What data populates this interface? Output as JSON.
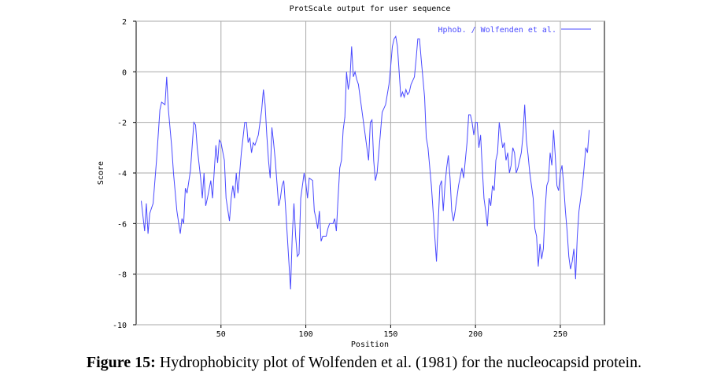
{
  "chart_data": {
    "type": "line",
    "title": "ProtScale output for user sequence",
    "xlabel": "Position",
    "ylabel": "Score",
    "xlim": [
      0,
      276
    ],
    "ylim": [
      -10,
      2
    ],
    "xticks": [
      50,
      100,
      150,
      200,
      250
    ],
    "yticks": [
      2,
      0,
      -2,
      -4,
      -6,
      -8,
      -10
    ],
    "grid": true,
    "legend": "upper right",
    "x": [
      3,
      5,
      6,
      7,
      8,
      10,
      12,
      14,
      15,
      17,
      18,
      19,
      21,
      22,
      24,
      26,
      27,
      28,
      29,
      30,
      32,
      34,
      35,
      36,
      38,
      39,
      40,
      41,
      42,
      44,
      45,
      47,
      48,
      49,
      50,
      52,
      53,
      55,
      56,
      57,
      58,
      59,
      60,
      62,
      64,
      65,
      66,
      67,
      68,
      69,
      70,
      72,
      73,
      74,
      75,
      76,
      77,
      78,
      79,
      80,
      81,
      82,
      84,
      85,
      86,
      87,
      88,
      90,
      91,
      92,
      93,
      94,
      95,
      96,
      97,
      98,
      99,
      100,
      101,
      102,
      104,
      105,
      106,
      107,
      108,
      109,
      110,
      112,
      113,
      114,
      116,
      117,
      118,
      119,
      120,
      121,
      122,
      123,
      124,
      125,
      126,
      127,
      128,
      129,
      130,
      131,
      132,
      134,
      136,
      137,
      138,
      139,
      140,
      141,
      142,
      143,
      145,
      147,
      149,
      150,
      151,
      152,
      153,
      154,
      155,
      156,
      157,
      158,
      159,
      160,
      161,
      162,
      164,
      165,
      166,
      167,
      168,
      170,
      171,
      172,
      174,
      176,
      177,
      178,
      179,
      180,
      181,
      182,
      183,
      184,
      185,
      186,
      187,
      188,
      190,
      192,
      193,
      194,
      195,
      196,
      197,
      198,
      199,
      200,
      201,
      202,
      203,
      204,
      205,
      206,
      207,
      208,
      209,
      210,
      211,
      212,
      213,
      214,
      215,
      216,
      217,
      218,
      219,
      220,
      221,
      222,
      223,
      224,
      225,
      227,
      228,
      229,
      230,
      231,
      232,
      234,
      235,
      236,
      237,
      238,
      239,
      240,
      241,
      242,
      243,
      244,
      245,
      246,
      247,
      248,
      249,
      250,
      251,
      252,
      253,
      254,
      255,
      256,
      257,
      258,
      259,
      260,
      261,
      262,
      263,
      264,
      265,
      266,
      267
    ],
    "series": [
      {
        "name": "Hphob. / Wolfenden et al.",
        "color": "#4a4aff",
        "values": [
          -5.1,
          -6.3,
          -5.2,
          -6.4,
          -5.6,
          -5.2,
          -3.5,
          -1.5,
          -1.2,
          -1.3,
          -0.2,
          -1.5,
          -3.0,
          -4.0,
          -5.5,
          -6.4,
          -5.8,
          -6.0,
          -4.6,
          -4.8,
          -3.9,
          -2.0,
          -2.1,
          -3.0,
          -4.2,
          -5.0,
          -4.0,
          -5.3,
          -5.0,
          -4.3,
          -5.0,
          -2.9,
          -3.6,
          -2.7,
          -2.8,
          -3.5,
          -5.0,
          -5.9,
          -5.0,
          -4.5,
          -5.0,
          -4.0,
          -4.8,
          -3.2,
          -2.0,
          -2.0,
          -2.8,
          -2.6,
          -3.2,
          -2.8,
          -2.9,
          -2.5,
          -2.0,
          -1.5,
          -0.7,
          -1.3,
          -2.5,
          -3.5,
          -4.2,
          -2.2,
          -2.8,
          -3.5,
          -5.3,
          -5.0,
          -4.5,
          -4.3,
          -5.3,
          -7.5,
          -8.6,
          -6.5,
          -5.2,
          -6.5,
          -7.3,
          -7.2,
          -5.0,
          -4.5,
          -4.0,
          -4.4,
          -5.0,
          -4.2,
          -4.3,
          -5.5,
          -5.8,
          -6.2,
          -5.5,
          -6.7,
          -6.5,
          -6.5,
          -6.2,
          -6.0,
          -6.0,
          -5.8,
          -6.3,
          -5.0,
          -3.8,
          -3.5,
          -2.3,
          -1.8,
          0.0,
          -0.7,
          -0.3,
          1.0,
          -0.2,
          0.0,
          -0.3,
          -0.5,
          -1.0,
          -2.0,
          -3.0,
          -3.5,
          -2.0,
          -1.9,
          -3.5,
          -4.3,
          -4.0,
          -3.2,
          -1.6,
          -1.3,
          -0.5,
          0.2,
          1.0,
          1.3,
          1.4,
          1.0,
          0.0,
          -1.0,
          -0.8,
          -1.0,
          -0.7,
          -0.9,
          -0.8,
          -0.5,
          -0.2,
          0.5,
          1.3,
          1.3,
          0.5,
          -1.0,
          -2.6,
          -3.0,
          -4.5,
          -6.5,
          -7.5,
          -6.0,
          -4.5,
          -4.3,
          -5.5,
          -4.5,
          -3.8,
          -3.3,
          -4.2,
          -5.5,
          -5.9,
          -5.5,
          -4.5,
          -3.8,
          -4.2,
          -3.5,
          -2.8,
          -1.7,
          -1.7,
          -2.0,
          -2.5,
          -2.0,
          -2.0,
          -3.0,
          -2.5,
          -3.8,
          -5.0,
          -5.5,
          -6.1,
          -5.0,
          -5.3,
          -4.5,
          -4.7,
          -3.5,
          -3.2,
          -2.0,
          -2.5,
          -3.0,
          -2.8,
          -3.5,
          -3.2,
          -4.0,
          -3.7,
          -3.0,
          -3.2,
          -4.0,
          -3.8,
          -3.2,
          -2.5,
          -1.3,
          -2.7,
          -3.3,
          -4.0,
          -5.0,
          -6.2,
          -6.5,
          -7.7,
          -6.8,
          -7.4,
          -7.0,
          -5.5,
          -4.5,
          -4.3,
          -3.2,
          -3.7,
          -2.3,
          -3.3,
          -4.5,
          -4.7,
          -4.0,
          -3.7,
          -4.5,
          -5.5,
          -6.3,
          -7.3,
          -7.8,
          -7.5,
          -7.0,
          -8.2,
          -6.5,
          -5.5,
          -5.0,
          -4.5,
          -3.8,
          -3.0,
          -3.2,
          -2.3
        ]
      }
    ]
  },
  "caption": {
    "label": "Figure 15:",
    "text": "Hydrophobicity plot of  Wolfenden et al. (1981) for the nucleocapsid protein."
  }
}
